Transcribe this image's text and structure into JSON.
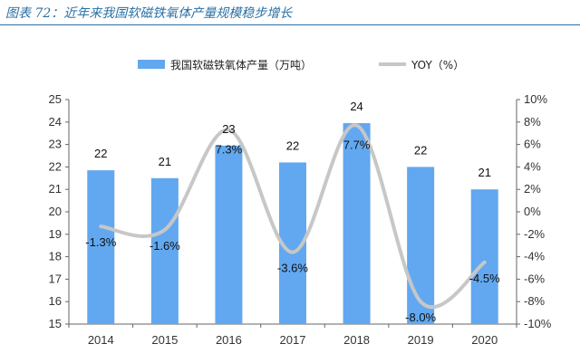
{
  "header": {
    "title": "图表 72：近年来我国软磁铁氧体产量规模稳步增长"
  },
  "chart_data": {
    "type": "bar",
    "categories": [
      "2014",
      "2015",
      "2016",
      "2017",
      "2018",
      "2019",
      "2020"
    ],
    "series": [
      {
        "name": "我国软磁铁氧体产量（万吨）",
        "type": "bar",
        "axis": "left",
        "values": [
          22,
          21,
          23,
          22,
          24,
          22,
          21
        ],
        "heights": [
          21.85,
          21.5,
          22.95,
          22.2,
          23.95,
          22.0,
          21.0
        ],
        "labels": [
          "22",
          "21",
          "23",
          "22",
          "24",
          "22",
          "21"
        ]
      },
      {
        "name": "YOY（%）",
        "type": "line",
        "axis": "right",
        "values": [
          -1.3,
          -1.6,
          7.3,
          -3.6,
          7.7,
          -8.0,
          -4.5
        ],
        "labels": [
          "-1.3%",
          "-1.6%",
          "7.3%",
          "-3.6%",
          "7.7%",
          "-8.0%",
          "-4.5%"
        ]
      }
    ],
    "y_left": {
      "ylim": [
        15,
        25
      ],
      "ticks": [
        "15",
        "16",
        "17",
        "18",
        "19",
        "20",
        "21",
        "22",
        "23",
        "24",
        "25"
      ]
    },
    "y_right": {
      "ylim": [
        -10,
        10
      ],
      "ticks": [
        "-10%",
        "-8%",
        "-6%",
        "-4%",
        "-2%",
        "0%",
        "2%",
        "4%",
        "6%",
        "8%",
        "10%"
      ]
    },
    "grid": false,
    "legend_position": "top",
    "colors": {
      "bar": "#62a8f0",
      "line": "#c7c7c7"
    }
  }
}
